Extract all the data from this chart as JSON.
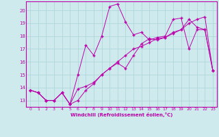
{
  "xlabel": "Windchill (Refroidissement éolien,°C)",
  "background_color": "#ceeaec",
  "grid_color": "#aad4d8",
  "line_color": "#bb00aa",
  "xlim": [
    -0.5,
    23.5
  ],
  "ylim": [
    12.5,
    20.7
  ],
  "xticks": [
    0,
    1,
    2,
    3,
    4,
    5,
    6,
    7,
    8,
    9,
    10,
    11,
    12,
    13,
    14,
    15,
    16,
    17,
    18,
    19,
    20,
    21,
    22,
    23
  ],
  "yticks": [
    13,
    14,
    15,
    16,
    17,
    18,
    19,
    20
  ],
  "line1_x": [
    0,
    1,
    2,
    3,
    4,
    5,
    6,
    7,
    8,
    9,
    10,
    11,
    12,
    13,
    14,
    15,
    16,
    17,
    18,
    19,
    20,
    21,
    22,
    23
  ],
  "line1_y": [
    13.8,
    13.6,
    13.0,
    13.0,
    13.6,
    12.7,
    13.9,
    14.1,
    14.4,
    15.0,
    15.5,
    16.0,
    16.5,
    17.0,
    17.2,
    17.5,
    17.8,
    17.9,
    18.2,
    18.5,
    19.0,
    19.3,
    19.5,
    15.3
  ],
  "line2_x": [
    0,
    1,
    2,
    3,
    4,
    5,
    6,
    7,
    8,
    9,
    10,
    11,
    12,
    13,
    14,
    15,
    16,
    17,
    18,
    19,
    20,
    21,
    22,
    23
  ],
  "line2_y": [
    13.8,
    13.6,
    13.0,
    13.0,
    13.6,
    12.7,
    15.0,
    17.3,
    16.5,
    18.0,
    20.3,
    20.5,
    19.1,
    18.1,
    18.3,
    17.7,
    17.9,
    18.0,
    19.3,
    19.4,
    17.0,
    18.5,
    18.5,
    15.3
  ],
  "line3_x": [
    0,
    1,
    2,
    3,
    4,
    5,
    6,
    7,
    8,
    9,
    10,
    11,
    12,
    13,
    14,
    15,
    16,
    17,
    18,
    19,
    20,
    21,
    22,
    23
  ],
  "line3_y": [
    13.8,
    13.6,
    13.0,
    13.0,
    13.6,
    12.7,
    13.0,
    13.8,
    14.3,
    15.0,
    15.5,
    15.9,
    15.5,
    16.5,
    17.4,
    17.8,
    17.7,
    17.9,
    18.3,
    18.5,
    19.3,
    18.7,
    18.5,
    15.3
  ]
}
